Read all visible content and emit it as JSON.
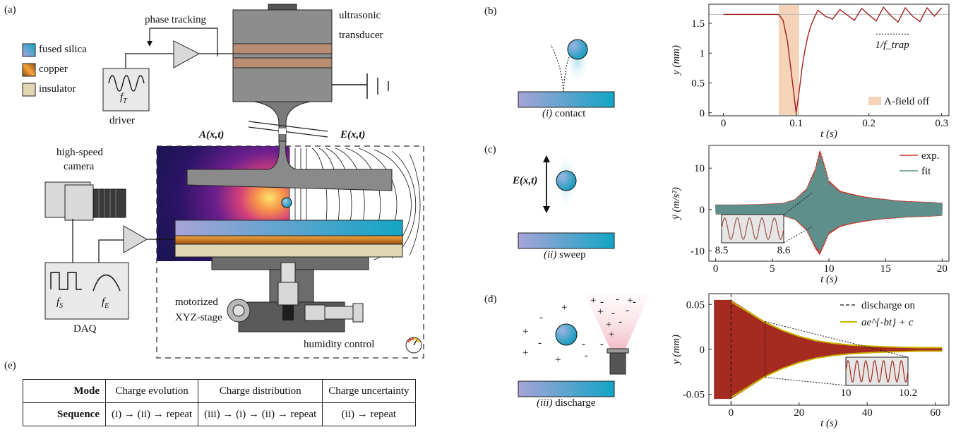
{
  "panels": {
    "a": "(a)",
    "b": "(b)",
    "c": "(c)",
    "d": "(d)",
    "e": "(e)"
  },
  "setup": {
    "legend": [
      {
        "label": "fused silica",
        "color_a": "#2bb3d2",
        "color_b": "#a7a3d8"
      },
      {
        "label": "copper",
        "color_a": "#f7a43a",
        "color_b": "#8a4a12"
      },
      {
        "label": "insulator",
        "color_a": "#e2d7b5",
        "color_b": "#e2d7b5"
      }
    ],
    "phase_tracking": "phase tracking",
    "ultrasonic": "ultrasonic",
    "transducer": "transducer",
    "driver": "driver",
    "driver_symbol": "f",
    "driver_sub": "T",
    "field_a": "A(x,t)",
    "field_e": "E(x,t)",
    "camera_line1": "high-speed",
    "camera_line2": "camera",
    "daq": "DAQ",
    "daq_f1": "f",
    "daq_f1_sub": "S",
    "daq_f2": "f",
    "daq_f2_sub": "E",
    "stage_line1": "motorized",
    "stage_line2": "XYZ-stage",
    "humidity": "humidity control"
  },
  "steps": {
    "contact": {
      "num": "(i)",
      "text": " contact"
    },
    "sweep": {
      "num": "(ii)",
      "text": " sweep",
      "field": "E(x,t)"
    },
    "discharge": {
      "num": "(iii)",
      "text": " discharge"
    }
  },
  "table": {
    "header_label": "Mode",
    "row_label": "Sequence",
    "modes": [
      "Charge evolution",
      "Charge distribution",
      "Charge uncertainty"
    ],
    "sequences": [
      "(i) → (ii) → repeat",
      "(iii) → (i) → (ii) → repeat",
      "(ii) → repeat"
    ]
  },
  "chart_data": [
    {
      "type": "line",
      "panel": "(b)",
      "xlabel": "t (s)",
      "ylabel": "y (mm)",
      "xlim": [
        -0.02,
        0.31
      ],
      "ylim": [
        -0.05,
        1.82
      ],
      "xticks": [
        "0",
        "0.1",
        "0.2",
        "0.3"
      ],
      "yticks": [
        "0",
        "0.5",
        "1",
        "1.5"
      ],
      "shaded_region": {
        "x": [
          0.076,
          0.104
        ],
        "label": "A-field off",
        "color": "#f5d3b8"
      },
      "series": [
        {
          "color": "#a0201e",
          "x": [
            0,
            0.076,
            0.082,
            0.088,
            0.094,
            0.1,
            0.104,
            0.108,
            0.112,
            0.116,
            0.12,
            0.125,
            0.13,
            0.14,
            0.15,
            0.16,
            0.17,
            0.18,
            0.19,
            0.2,
            0.21,
            0.22,
            0.23,
            0.24,
            0.25,
            0.26,
            0.27,
            0.28,
            0.29,
            0.3
          ],
          "y": [
            1.65,
            1.65,
            1.55,
            1.2,
            0.6,
            0.0,
            0.35,
            0.75,
            1.05,
            1.28,
            1.45,
            1.6,
            1.72,
            1.62,
            1.57,
            1.73,
            1.64,
            1.55,
            1.75,
            1.64,
            1.54,
            1.77,
            1.63,
            1.52,
            1.76,
            1.62,
            1.53,
            1.76,
            1.62,
            1.76
          ]
        }
      ],
      "reference_line": 1.65,
      "annotation": "1/f_trap"
    },
    {
      "type": "line",
      "panel": "(c)",
      "xlabel": "t (s)",
      "ylabel": "ÿ (m/s²)",
      "xlim": [
        -0.6,
        20.6
      ],
      "ylim": [
        -12.5,
        15.5
      ],
      "xticks": [
        "0",
        "5",
        "10",
        "15",
        "20"
      ],
      "yticks": [
        "-10",
        "0",
        "10"
      ],
      "envelope": {
        "t": [
          0,
          2,
          4,
          6,
          7,
          8,
          8.8,
          9.2,
          9.6,
          10,
          11,
          12,
          13,
          14,
          15,
          16,
          17,
          18,
          19,
          20
        ],
        "top": [
          1.2,
          1.2,
          1.3,
          1.6,
          2.5,
          5,
          10,
          14.5,
          11,
          7,
          4.5,
          3.8,
          3.2,
          2.8,
          2.5,
          2.2,
          2.0,
          1.9,
          1.8,
          1.6
        ],
        "bottom": [
          -1.2,
          -1.2,
          -1.3,
          -1.6,
          -2.5,
          -5,
          -9.5,
          -11,
          -8.5,
          -6,
          -4.2,
          -3.5,
          -3.0,
          -2.6,
          -2.3,
          -2.1,
          -1.9,
          -1.8,
          -1.7,
          -1.5
        ]
      },
      "series": [
        {
          "name": "exp.",
          "color": "#c0392b"
        },
        {
          "name": "fit",
          "color": "#5f8f8a"
        }
      ],
      "inset": {
        "xticks": [
          "8.5",
          "8.6"
        ],
        "xrange": [
          8.5,
          8.6
        ]
      }
    },
    {
      "type": "line",
      "panel": "(d)",
      "xlabel": "t (s)",
      "ylabel": "y (mm)",
      "xlim": [
        -6.5,
        64
      ],
      "ylim": [
        -0.062,
        0.062
      ],
      "xticks": [
        "0",
        "20",
        "40",
        "60"
      ],
      "yticks": [
        "-0.05",
        "0",
        "0.05"
      ],
      "envelope": {
        "t": [
          -5,
          0,
          5,
          10,
          15,
          20,
          25,
          30,
          35,
          40,
          45,
          50,
          55,
          60,
          62
        ],
        "top": [
          0.055,
          0.055,
          0.043,
          0.031,
          0.022,
          0.015,
          0.01,
          0.007,
          0.005,
          0.004,
          0.003,
          0.0025,
          0.002,
          0.002,
          0.002
        ]
      },
      "series": [
        {
          "name": "discharge on",
          "color": "#111111",
          "style": "dashed",
          "x": 0
        },
        {
          "name": "ae^{-bt} + c",
          "color": "#c8b400"
        }
      ],
      "fill_color": "#a52a1f",
      "inset": {
        "xticks": [
          "10",
          "10.2"
        ],
        "xrange": [
          10,
          10.2
        ]
      }
    }
  ]
}
